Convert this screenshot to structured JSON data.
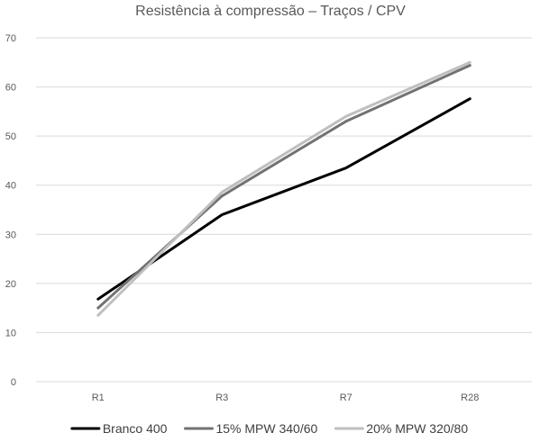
{
  "chart_data": {
    "type": "line",
    "title": "Resistência à compressão – Traços / CPV",
    "xlabel": "",
    "ylabel": "",
    "categories": [
      "R1",
      "R3",
      "R7",
      "R28"
    ],
    "ylim": [
      0,
      70
    ],
    "yticks": [
      "0",
      "10",
      "20",
      "30",
      "40",
      "50",
      "60",
      "70"
    ],
    "grid": "horizontal",
    "legend": "bottom",
    "series": [
      {
        "name": "Branco 400",
        "color": "#000000",
        "values": [
          16.8,
          34.0,
          43.5,
          57.6
        ]
      },
      {
        "name": "15% MPW 340/60",
        "color": "#767171",
        "values": [
          15.0,
          37.8,
          53.0,
          64.4
        ]
      },
      {
        "name": "20% MPW 320/80",
        "color": "#bfbfbf",
        "values": [
          13.5,
          38.6,
          54.0,
          65.0
        ]
      }
    ]
  }
}
